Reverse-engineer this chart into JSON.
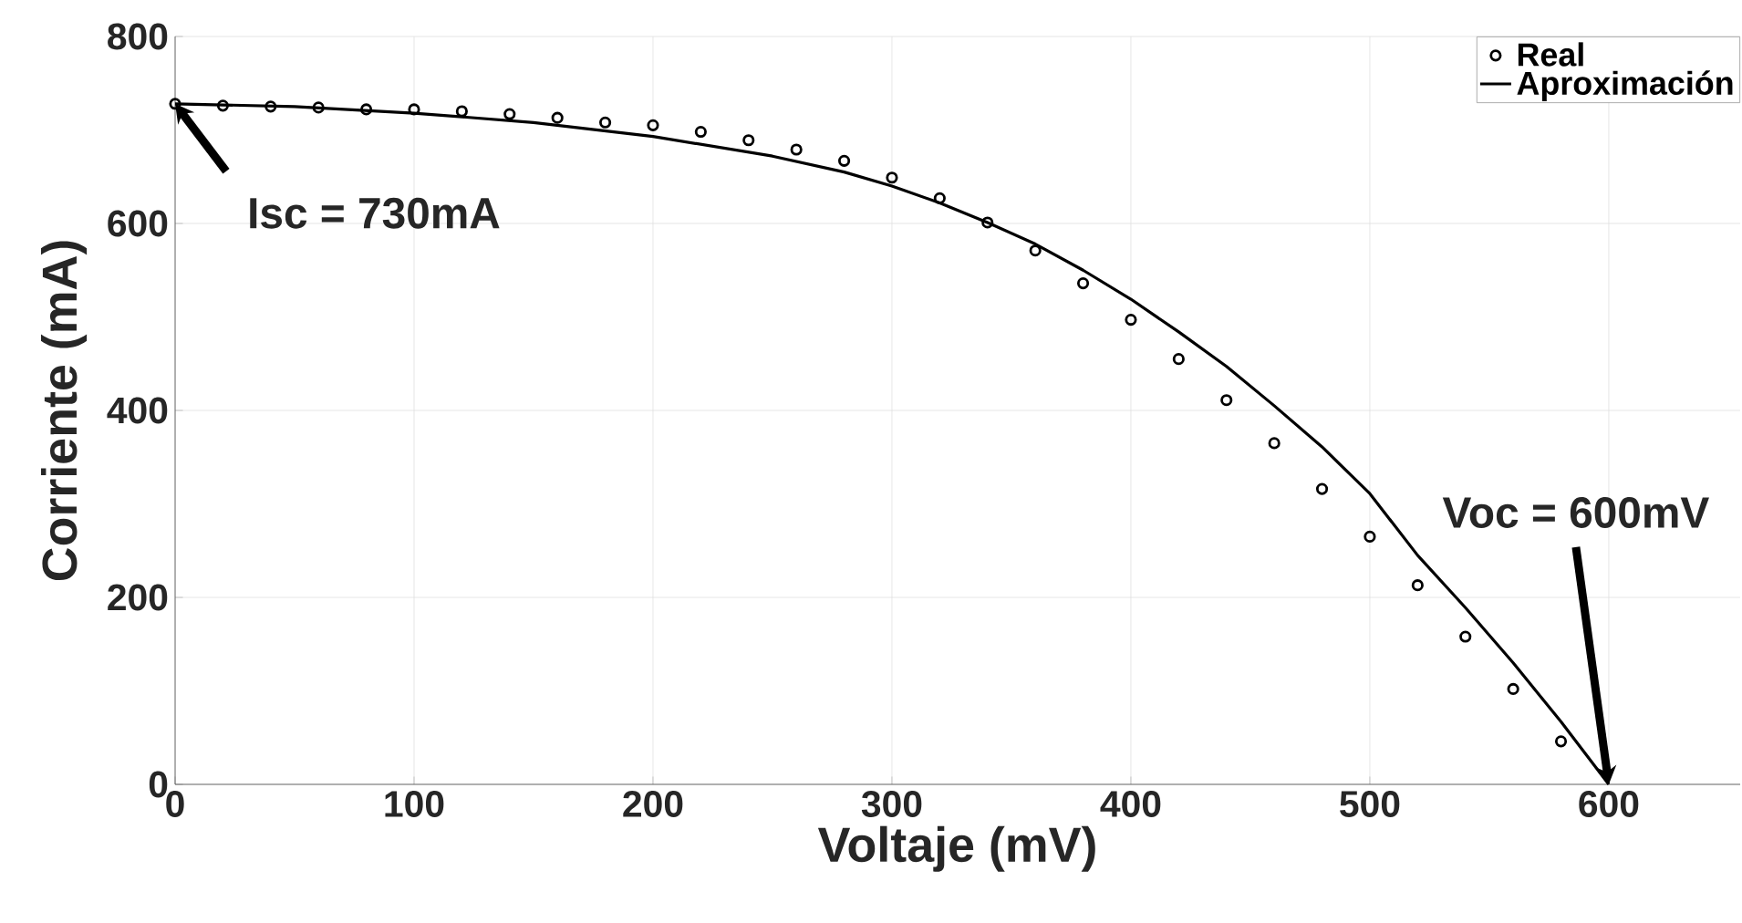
{
  "chart_data": {
    "type": "scatter",
    "xlabel": "Voltaje (mV)",
    "ylabel": "Corriente (mA)",
    "xlim": [
      0,
      655
    ],
    "ylim": [
      0,
      800
    ],
    "xticks": [
      0,
      100,
      200,
      300,
      400,
      500,
      600
    ],
    "yticks": [
      0,
      200,
      400,
      600,
      800
    ],
    "grid": true,
    "legend": "top right",
    "series": [
      {
        "name": "Real",
        "marker": "circle",
        "color": "#000000",
        "x": [
          0,
          20,
          40,
          60,
          80,
          100,
          120,
          140,
          160,
          180,
          200,
          220,
          240,
          260,
          280,
          300,
          320,
          340,
          360,
          380,
          400,
          420,
          440,
          460,
          480,
          500,
          520,
          540,
          560,
          580
        ],
        "values": [
          728,
          726,
          725,
          724,
          722,
          722,
          720,
          717,
          713,
          708,
          705,
          698,
          689,
          679,
          667,
          649,
          627,
          601,
          571,
          536,
          497,
          455,
          411,
          365,
          316,
          265,
          213,
          158,
          102,
          46
        ]
      },
      {
        "name": "Aproximación",
        "type": "line",
        "marker": "none",
        "line_style": "solid",
        "color": "#000000",
        "x": [
          0,
          50,
          100,
          150,
          200,
          250,
          280,
          300,
          320,
          340,
          360,
          380,
          400,
          420,
          440,
          460,
          480,
          500,
          520,
          540,
          560,
          580,
          600
        ],
        "values": [
          728,
          725,
          718,
          708,
          693,
          672,
          655,
          640,
          622,
          601,
          578,
          550,
          519,
          484,
          447,
          405,
          361,
          311,
          245,
          189,
          130,
          67,
          0
        ]
      }
    ],
    "annotations": [
      {
        "text": "Isc = 730mA",
        "x": 0,
        "y": 728
      },
      {
        "text": "Voc = 600mV",
        "x": 600,
        "y": 0
      }
    ]
  }
}
